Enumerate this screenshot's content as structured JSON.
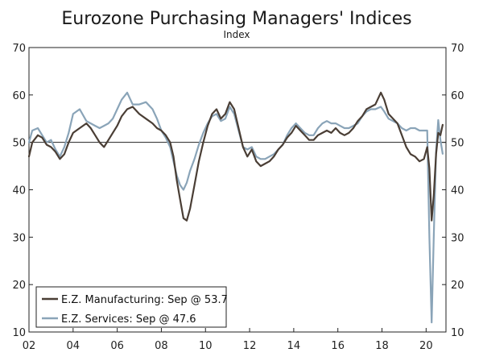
{
  "chart_data": {
    "type": "line",
    "title": "Eurozone Purchasing Managers' Indices",
    "subtitle": "Index",
    "xlabel": "",
    "ylabel": "",
    "xlim": [
      2002.0,
      2020.9
    ],
    "ylim": [
      10,
      70
    ],
    "y_ticks": [
      10,
      20,
      30,
      40,
      50,
      60,
      70
    ],
    "x_ticks": [
      {
        "pos": 2002,
        "label": "02"
      },
      {
        "pos": 2004,
        "label": "04"
      },
      {
        "pos": 2006,
        "label": "06"
      },
      {
        "pos": 2008,
        "label": "08"
      },
      {
        "pos": 2010,
        "label": "10"
      },
      {
        "pos": 2012,
        "label": "12"
      },
      {
        "pos": 2014,
        "label": "14"
      },
      {
        "pos": 2016,
        "label": "16"
      },
      {
        "pos": 2018,
        "label": "18"
      },
      {
        "pos": 2020,
        "label": "20"
      }
    ],
    "reference_line": 50,
    "legend_position": "bottom-left",
    "series": [
      {
        "name": "E.Z. Manufacturing: Sep @ 53.7",
        "color": "#4a3e35",
        "points": [
          [
            2002.0,
            47
          ],
          [
            2002.15,
            50
          ],
          [
            2002.4,
            51.5
          ],
          [
            2002.6,
            51
          ],
          [
            2002.8,
            49.5
          ],
          [
            2003.0,
            49
          ],
          [
            2003.2,
            48
          ],
          [
            2003.4,
            46.5
          ],
          [
            2003.6,
            47.5
          ],
          [
            2003.8,
            50
          ],
          [
            2004.0,
            52
          ],
          [
            2004.3,
            53
          ],
          [
            2004.6,
            54
          ],
          [
            2004.8,
            53
          ],
          [
            2005.0,
            51.5
          ],
          [
            2005.2,
            50
          ],
          [
            2005.4,
            49
          ],
          [
            2005.6,
            50.5
          ],
          [
            2005.8,
            52
          ],
          [
            2006.0,
            53.5
          ],
          [
            2006.2,
            55.5
          ],
          [
            2006.45,
            57
          ],
          [
            2006.7,
            57.5
          ],
          [
            2007.0,
            56
          ],
          [
            2007.3,
            55
          ],
          [
            2007.6,
            54
          ],
          [
            2007.8,
            53
          ],
          [
            2008.0,
            52.5
          ],
          [
            2008.2,
            51.5
          ],
          [
            2008.4,
            50
          ],
          [
            2008.55,
            47
          ],
          [
            2008.7,
            42
          ],
          [
            2008.85,
            38
          ],
          [
            2009.0,
            34
          ],
          [
            2009.15,
            33.5
          ],
          [
            2009.3,
            36
          ],
          [
            2009.5,
            41
          ],
          [
            2009.7,
            46
          ],
          [
            2009.9,
            50
          ],
          [
            2010.1,
            53.5
          ],
          [
            2010.3,
            56
          ],
          [
            2010.5,
            57
          ],
          [
            2010.7,
            55
          ],
          [
            2010.9,
            56
          ],
          [
            2011.1,
            58.5
          ],
          [
            2011.3,
            57
          ],
          [
            2011.5,
            53
          ],
          [
            2011.7,
            49
          ],
          [
            2011.9,
            47
          ],
          [
            2012.1,
            48.5
          ],
          [
            2012.3,
            46
          ],
          [
            2012.5,
            45
          ],
          [
            2012.7,
            45.5
          ],
          [
            2012.9,
            46
          ],
          [
            2013.1,
            47
          ],
          [
            2013.3,
            48.5
          ],
          [
            2013.5,
            49.5
          ],
          [
            2013.7,
            51
          ],
          [
            2013.9,
            52
          ],
          [
            2014.1,
            53.5
          ],
          [
            2014.3,
            52.5
          ],
          [
            2014.5,
            51.5
          ],
          [
            2014.7,
            50.5
          ],
          [
            2014.9,
            50.5
          ],
          [
            2015.1,
            51.5
          ],
          [
            2015.3,
            52
          ],
          [
            2015.5,
            52.5
          ],
          [
            2015.7,
            52
          ],
          [
            2015.9,
            53
          ],
          [
            2016.1,
            52
          ],
          [
            2016.3,
            51.5
          ],
          [
            2016.5,
            52
          ],
          [
            2016.7,
            53
          ],
          [
            2016.9,
            54.5
          ],
          [
            2017.1,
            55.5
          ],
          [
            2017.3,
            57
          ],
          [
            2017.5,
            57.5
          ],
          [
            2017.7,
            58
          ],
          [
            2017.95,
            60.5
          ],
          [
            2018.1,
            59
          ],
          [
            2018.3,
            56
          ],
          [
            2018.5,
            55
          ],
          [
            2018.7,
            54
          ],
          [
            2018.9,
            51.5
          ],
          [
            2019.1,
            49
          ],
          [
            2019.3,
            47.5
          ],
          [
            2019.5,
            47
          ],
          [
            2019.7,
            46
          ],
          [
            2019.9,
            46.5
          ],
          [
            2020.05,
            49
          ],
          [
            2020.15,
            44.5
          ],
          [
            2020.25,
            33.5
          ],
          [
            2020.35,
            39
          ],
          [
            2020.45,
            47.5
          ],
          [
            2020.55,
            52
          ],
          [
            2020.65,
            51.5
          ],
          [
            2020.75,
            53.7
          ]
        ]
      },
      {
        "name": "E.Z. Services: Sep @ 47.6",
        "color": "#8aa4b8",
        "points": [
          [
            2002.0,
            50
          ],
          [
            2002.15,
            52.5
          ],
          [
            2002.4,
            53
          ],
          [
            2002.6,
            51.5
          ],
          [
            2002.8,
            50
          ],
          [
            2003.0,
            50.5
          ],
          [
            2003.2,
            48.5
          ],
          [
            2003.4,
            47
          ],
          [
            2003.6,
            49
          ],
          [
            2003.8,
            52
          ],
          [
            2004.0,
            56
          ],
          [
            2004.3,
            57
          ],
          [
            2004.6,
            54.5
          ],
          [
            2004.8,
            54
          ],
          [
            2005.0,
            53.5
          ],
          [
            2005.2,
            53
          ],
          [
            2005.4,
            53.5
          ],
          [
            2005.6,
            54
          ],
          [
            2005.8,
            55
          ],
          [
            2006.0,
            57
          ],
          [
            2006.2,
            59
          ],
          [
            2006.45,
            60.5
          ],
          [
            2006.7,
            58
          ],
          [
            2007.0,
            58
          ],
          [
            2007.3,
            58.5
          ],
          [
            2007.6,
            57
          ],
          [
            2007.8,
            55
          ],
          [
            2008.0,
            52.5
          ],
          [
            2008.2,
            51
          ],
          [
            2008.4,
            49
          ],
          [
            2008.55,
            46
          ],
          [
            2008.7,
            43
          ],
          [
            2008.85,
            41
          ],
          [
            2009.0,
            40
          ],
          [
            2009.15,
            41.5
          ],
          [
            2009.3,
            44
          ],
          [
            2009.5,
            46.5
          ],
          [
            2009.7,
            49.5
          ],
          [
            2009.9,
            52
          ],
          [
            2010.1,
            54
          ],
          [
            2010.3,
            55.5
          ],
          [
            2010.5,
            56
          ],
          [
            2010.7,
            54.5
          ],
          [
            2010.9,
            55
          ],
          [
            2011.1,
            57.5
          ],
          [
            2011.3,
            56
          ],
          [
            2011.5,
            52.5
          ],
          [
            2011.7,
            49
          ],
          [
            2011.9,
            48.5
          ],
          [
            2012.1,
            49
          ],
          [
            2012.3,
            47
          ],
          [
            2012.5,
            46.5
          ],
          [
            2012.7,
            46.5
          ],
          [
            2012.9,
            47
          ],
          [
            2013.1,
            47.5
          ],
          [
            2013.3,
            48.5
          ],
          [
            2013.5,
            49.5
          ],
          [
            2013.7,
            51.5
          ],
          [
            2013.9,
            53
          ],
          [
            2014.1,
            54
          ],
          [
            2014.3,
            53
          ],
          [
            2014.5,
            52
          ],
          [
            2014.7,
            51.5
          ],
          [
            2014.9,
            51.5
          ],
          [
            2015.1,
            53
          ],
          [
            2015.3,
            54
          ],
          [
            2015.5,
            54.5
          ],
          [
            2015.7,
            54
          ],
          [
            2015.9,
            54
          ],
          [
            2016.1,
            53.5
          ],
          [
            2016.3,
            53
          ],
          [
            2016.5,
            53
          ],
          [
            2016.7,
            53.5
          ],
          [
            2016.9,
            54
          ],
          [
            2017.1,
            55.5
          ],
          [
            2017.3,
            56.5
          ],
          [
            2017.5,
            57
          ],
          [
            2017.7,
            57
          ],
          [
            2017.95,
            57.5
          ],
          [
            2018.1,
            56.5
          ],
          [
            2018.3,
            55
          ],
          [
            2018.5,
            54.5
          ],
          [
            2018.7,
            54
          ],
          [
            2018.9,
            53
          ],
          [
            2019.1,
            52.5
          ],
          [
            2019.3,
            53
          ],
          [
            2019.5,
            53
          ],
          [
            2019.7,
            52.5
          ],
          [
            2019.9,
            52.5
          ],
          [
            2020.05,
            52.5
          ],
          [
            2020.15,
            30
          ],
          [
            2020.25,
            12
          ],
          [
            2020.35,
            30.5
          ],
          [
            2020.45,
            48
          ],
          [
            2020.55,
            54.7
          ],
          [
            2020.65,
            50.5
          ],
          [
            2020.75,
            47.6
          ]
        ]
      }
    ]
  }
}
